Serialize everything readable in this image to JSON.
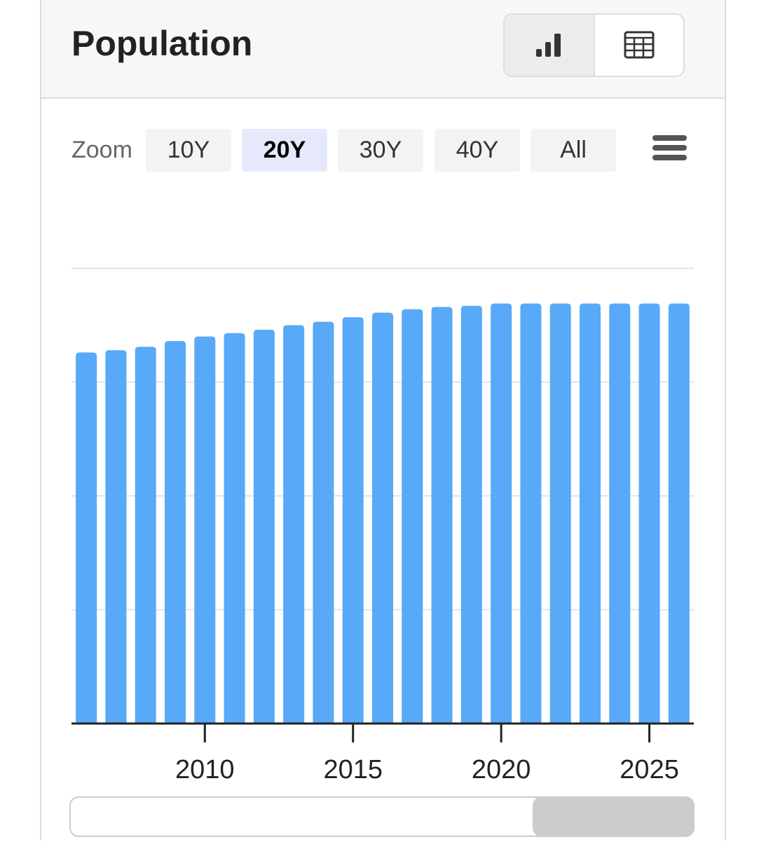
{
  "header": {
    "title": "Population"
  },
  "zoom": {
    "label": "Zoom",
    "options": [
      "10Y",
      "20Y",
      "30Y",
      "40Y",
      "All"
    ],
    "selected": "20Y"
  },
  "chart_data": {
    "type": "bar",
    "color": "#58a9f8",
    "x": [
      2006,
      2007,
      2008,
      2009,
      2010,
      2011,
      2012,
      2013,
      2014,
      2015,
      2016,
      2017,
      2018,
      2019,
      2020,
      2021,
      2022,
      2023,
      2024,
      2025,
      2026
    ],
    "values": [
      3.26,
      3.28,
      3.31,
      3.36,
      3.4,
      3.43,
      3.46,
      3.5,
      3.53,
      3.57,
      3.61,
      3.64,
      3.66,
      3.67,
      3.69,
      3.69,
      3.69,
      3.69,
      3.69,
      3.69,
      3.69
    ],
    "xlim": [
      2005.5,
      2026.5
    ],
    "xticks": [
      2010,
      2015,
      2020,
      2025
    ],
    "ylim": [
      0,
      4
    ],
    "yticks": [
      1,
      2,
      3,
      4
    ],
    "grid": true
  }
}
